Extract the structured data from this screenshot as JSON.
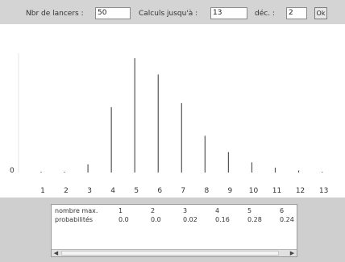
{
  "toolbar": {
    "lancers_label": "Nbr de lancers :",
    "lancers_value": "50",
    "calculs_label": "Calculs jusqu'à :",
    "calculs_value": "13",
    "dec_label": "déc. :",
    "dec_value": "2",
    "ok_label": "Ok"
  },
  "chart_data": {
    "type": "bar",
    "categories": [
      "1",
      "2",
      "3",
      "4",
      "5",
      "6",
      "7",
      "8",
      "9",
      "10",
      "11",
      "12",
      "13"
    ],
    "values": [
      0.0,
      0.0,
      0.02,
      0.16,
      0.28,
      0.24,
      0.17,
      0.09,
      0.05,
      0.025,
      0.012,
      0.005,
      0.002
    ],
    "y_tick_label": "0",
    "ylim": [
      0,
      0.3
    ]
  },
  "table": {
    "row_labels": [
      "nombre max.",
      "probabilités"
    ],
    "columns": [
      {
        "n": "1",
        "p": "0.0"
      },
      {
        "n": "2",
        "p": "0.0"
      },
      {
        "n": "3",
        "p": "0.02"
      },
      {
        "n": "4",
        "p": "0.16"
      },
      {
        "n": "5",
        "p": "0.28"
      },
      {
        "n": "6",
        "p": "0.24"
      }
    ]
  },
  "scrollbar": {
    "left_arrow": "◀",
    "right_arrow": "▶"
  }
}
